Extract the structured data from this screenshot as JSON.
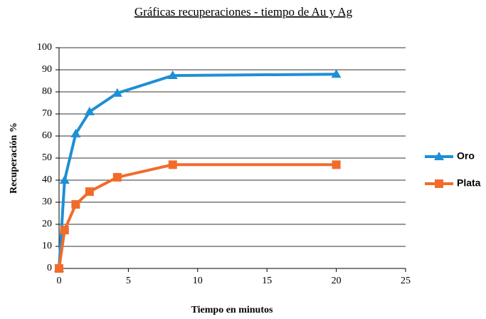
{
  "chart_data": {
    "type": "line",
    "title": "Gráficas recuperaciones - tiempo de Au y Ag",
    "x_label": "Tiempo en minutos",
    "y_label": "Recuperación %",
    "x": [
      0,
      0.4,
      1.2,
      2.2,
      4.2,
      8.2,
      20
    ],
    "series": [
      {
        "name": "Oro",
        "color": "#1e8fd5",
        "marker": "triangle",
        "values": [
          0,
          40,
          61,
          71,
          79.4,
          87.4,
          88
        ]
      },
      {
        "name": "Plata",
        "color": "#f26b2b",
        "marker": "square",
        "values": [
          0,
          17.4,
          29,
          34.8,
          41.3,
          47,
          47
        ]
      }
    ],
    "xlim": [
      0,
      25
    ],
    "xticks": [
      0,
      5,
      10,
      15,
      20,
      25
    ],
    "ylim": [
      0,
      100
    ],
    "yticks": [
      0,
      10,
      20,
      30,
      40,
      50,
      60,
      70,
      80,
      90,
      100
    ],
    "grid": true,
    "legend": "right"
  }
}
